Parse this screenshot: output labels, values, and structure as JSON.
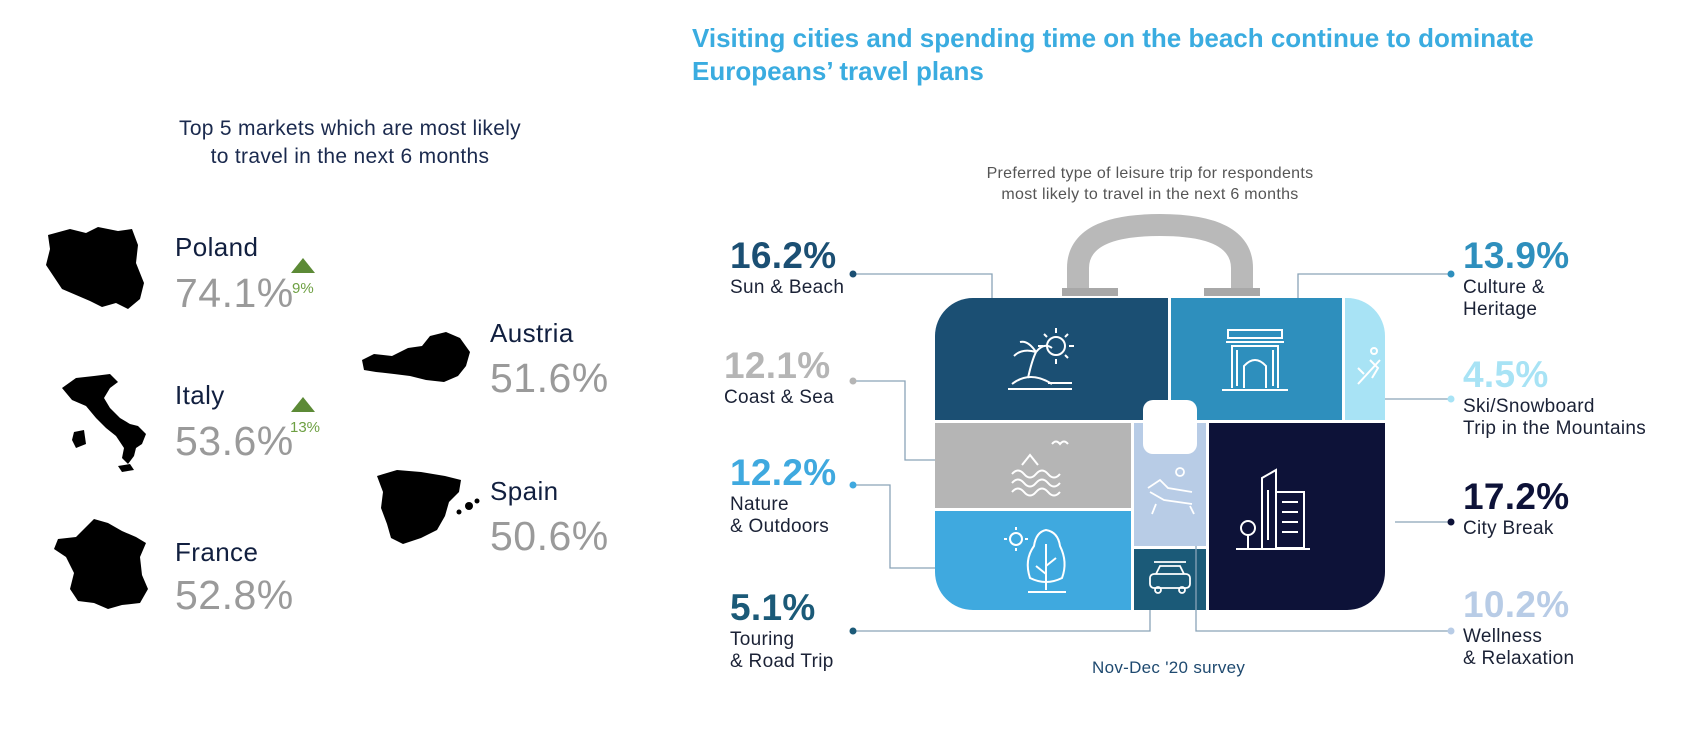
{
  "headline": "Visiting cities and spending time on the beach continue to dominate Europeans’ travel plans",
  "left_panel": {
    "title_line1": "Top 5 markets which are most likely",
    "title_line2": "to travel in the next 6 months",
    "markets": [
      {
        "name": "Poland",
        "value": "74.1%",
        "change": "9%",
        "map_icon": "poland-map-icon"
      },
      {
        "name": "Italy",
        "value": "53.6%",
        "change": "13%",
        "map_icon": "italy-map-icon"
      },
      {
        "name": "France",
        "value": "52.8%",
        "map_icon": "france-map-icon"
      },
      {
        "name": "Austria",
        "value": "51.6%",
        "map_icon": "austria-map-icon"
      },
      {
        "name": "Spain",
        "value": "50.6%",
        "map_icon": "spain-map-icon"
      }
    ],
    "up_color": "#5c8a36"
  },
  "chart_data": {
    "type": "treemap",
    "title_line1": "Preferred  type of leisure  trip for respondents",
    "title_line2": "most likely to travel in the next 6 months",
    "footnote": "Nov-Dec '20 survey",
    "unit": "%",
    "items": [
      {
        "name_line1": "Sun & Beach",
        "name_line2": "",
        "value": 16.2,
        "label": "16.2%",
        "color": "#1b4f73",
        "icon": "beach-icon"
      },
      {
        "name_line1": "Coast & Sea",
        "name_line2": "",
        "value": 12.1,
        "label": "12.1%",
        "color": "#b5b5b5",
        "icon": "waves-icon"
      },
      {
        "name_line1": "Nature",
        "name_line2": "& Outdoors",
        "value": 12.2,
        "label": "12.2%",
        "color": "#3fa9df",
        "icon": "tree-icon"
      },
      {
        "name_line1": "Touring",
        "name_line2": "& Road Trip",
        "value": 5.1,
        "label": "5.1%",
        "color": "#1b5a78",
        "icon": "car-icon"
      },
      {
        "name_line1": "Culture &",
        "name_line2": "Heritage",
        "value": 13.9,
        "label": "13.9%",
        "color": "#2e8fbd",
        "icon": "arch-icon"
      },
      {
        "name_line1": "Ski/Snowboard",
        "name_line2": "Trip in the Mountains",
        "value": 4.5,
        "label": "4.5%",
        "color": "#a8e3f5",
        "icon": "skier-icon"
      },
      {
        "name_line1": "City Break",
        "name_line2": "",
        "value": 17.2,
        "label": "17.2%",
        "color": "#0d1238",
        "icon": "city-icon"
      },
      {
        "name_line1": "Wellness",
        "name_line2": "& Relaxation",
        "value": 10.2,
        "label": "10.2%",
        "color": "#b8cce6",
        "icon": "lounger-icon"
      }
    ]
  }
}
